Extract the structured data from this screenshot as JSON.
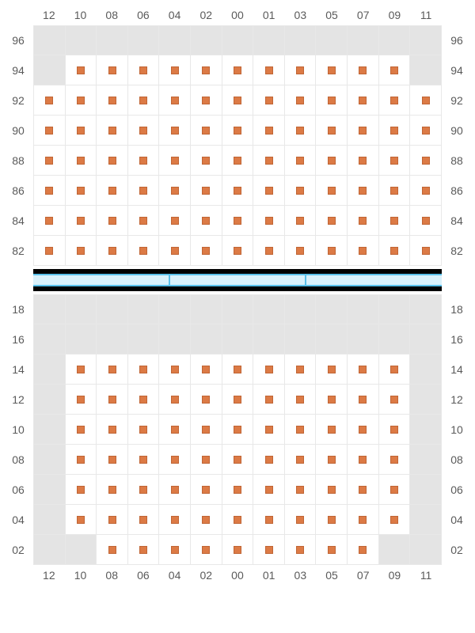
{
  "colors": {
    "background": "#ffffff",
    "empty_cell": "#e4e4e4",
    "slot_cell": "#ffffff",
    "marker_fill": "#dc7a45",
    "marker_border": "#c06535",
    "grid_line": "#e8e8e8",
    "label_text": "#5a5a5a",
    "divider_black": "#000000",
    "divider_bar_bg": "#d9f1fb",
    "divider_bar_border": "#59c0ea"
  },
  "column_labels": [
    "12",
    "10",
    "08",
    "06",
    "04",
    "02",
    "00",
    "01",
    "03",
    "05",
    "07",
    "09",
    "11"
  ],
  "top_section": {
    "row_labels_desc": [
      "96",
      "94",
      "92",
      "90",
      "88",
      "86",
      "84",
      "82"
    ],
    "rows": [
      {
        "label": "96",
        "cells": [
          "e",
          "e",
          "e",
          "e",
          "e",
          "e",
          "e",
          "e",
          "e",
          "e",
          "e",
          "e",
          "e"
        ]
      },
      {
        "label": "94",
        "cells": [
          "e",
          "m",
          "m",
          "m",
          "m",
          "m",
          "m",
          "m",
          "m",
          "m",
          "m",
          "m",
          "e"
        ]
      },
      {
        "label": "92",
        "cells": [
          "m",
          "m",
          "m",
          "m",
          "m",
          "m",
          "m",
          "m",
          "m",
          "m",
          "m",
          "m",
          "m"
        ]
      },
      {
        "label": "90",
        "cells": [
          "m",
          "m",
          "m",
          "m",
          "m",
          "m",
          "m",
          "m",
          "m",
          "m",
          "m",
          "m",
          "m"
        ]
      },
      {
        "label": "88",
        "cells": [
          "m",
          "m",
          "m",
          "m",
          "m",
          "m",
          "m",
          "m",
          "m",
          "m",
          "m",
          "m",
          "m"
        ]
      },
      {
        "label": "86",
        "cells": [
          "m",
          "m",
          "m",
          "m",
          "m",
          "m",
          "m",
          "m",
          "m",
          "m",
          "m",
          "m",
          "m"
        ]
      },
      {
        "label": "84",
        "cells": [
          "m",
          "m",
          "m",
          "m",
          "m",
          "m",
          "m",
          "m",
          "m",
          "m",
          "m",
          "m",
          "m"
        ]
      },
      {
        "label": "82",
        "cells": [
          "m",
          "m",
          "m",
          "m",
          "m",
          "m",
          "m",
          "m",
          "m",
          "m",
          "m",
          "m",
          "m"
        ]
      }
    ]
  },
  "divider": {
    "segments": 3
  },
  "bottom_section": {
    "row_labels_desc": [
      "18",
      "16",
      "14",
      "12",
      "10",
      "08",
      "06",
      "04",
      "02"
    ],
    "rows": [
      {
        "label": "18",
        "cells": [
          "e",
          "e",
          "e",
          "e",
          "e",
          "e",
          "e",
          "e",
          "e",
          "e",
          "e",
          "e",
          "e"
        ]
      },
      {
        "label": "16",
        "cells": [
          "e",
          "e",
          "e",
          "e",
          "e",
          "e",
          "e",
          "e",
          "e",
          "e",
          "e",
          "e",
          "e"
        ]
      },
      {
        "label": "14",
        "cells": [
          "e",
          "m",
          "m",
          "m",
          "m",
          "m",
          "m",
          "m",
          "m",
          "m",
          "m",
          "m",
          "e"
        ]
      },
      {
        "label": "12",
        "cells": [
          "e",
          "m",
          "m",
          "m",
          "m",
          "m",
          "m",
          "m",
          "m",
          "m",
          "m",
          "m",
          "e"
        ]
      },
      {
        "label": "10",
        "cells": [
          "e",
          "m",
          "m",
          "m",
          "m",
          "m",
          "m",
          "m",
          "m",
          "m",
          "m",
          "m",
          "e"
        ]
      },
      {
        "label": "08",
        "cells": [
          "e",
          "m",
          "m",
          "m",
          "m",
          "m",
          "m",
          "m",
          "m",
          "m",
          "m",
          "m",
          "e"
        ]
      },
      {
        "label": "06",
        "cells": [
          "e",
          "m",
          "m",
          "m",
          "m",
          "m",
          "m",
          "m",
          "m",
          "m",
          "m",
          "m",
          "e"
        ]
      },
      {
        "label": "04",
        "cells": [
          "e",
          "m",
          "m",
          "m",
          "m",
          "m",
          "m",
          "m",
          "m",
          "m",
          "m",
          "m",
          "e"
        ]
      },
      {
        "label": "02",
        "cells": [
          "e",
          "e",
          "m",
          "m",
          "m",
          "m",
          "m",
          "m",
          "m",
          "m",
          "m",
          "e",
          "e"
        ]
      }
    ]
  }
}
